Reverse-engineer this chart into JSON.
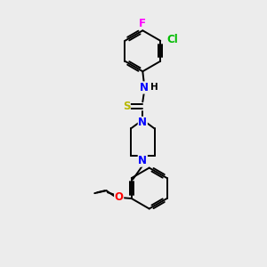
{
  "bg_color": "#ececec",
  "bond_color": "#000000",
  "bond_width": 1.4,
  "atom_colors": {
    "N": "#0000ff",
    "S": "#b8b800",
    "O": "#ff0000",
    "Cl": "#00bb00",
    "F": "#ff00ff",
    "H": "#000000",
    "C": "#000000"
  },
  "font_size": 8.5,
  "figsize": [
    3.0,
    3.0
  ],
  "dpi": 100
}
